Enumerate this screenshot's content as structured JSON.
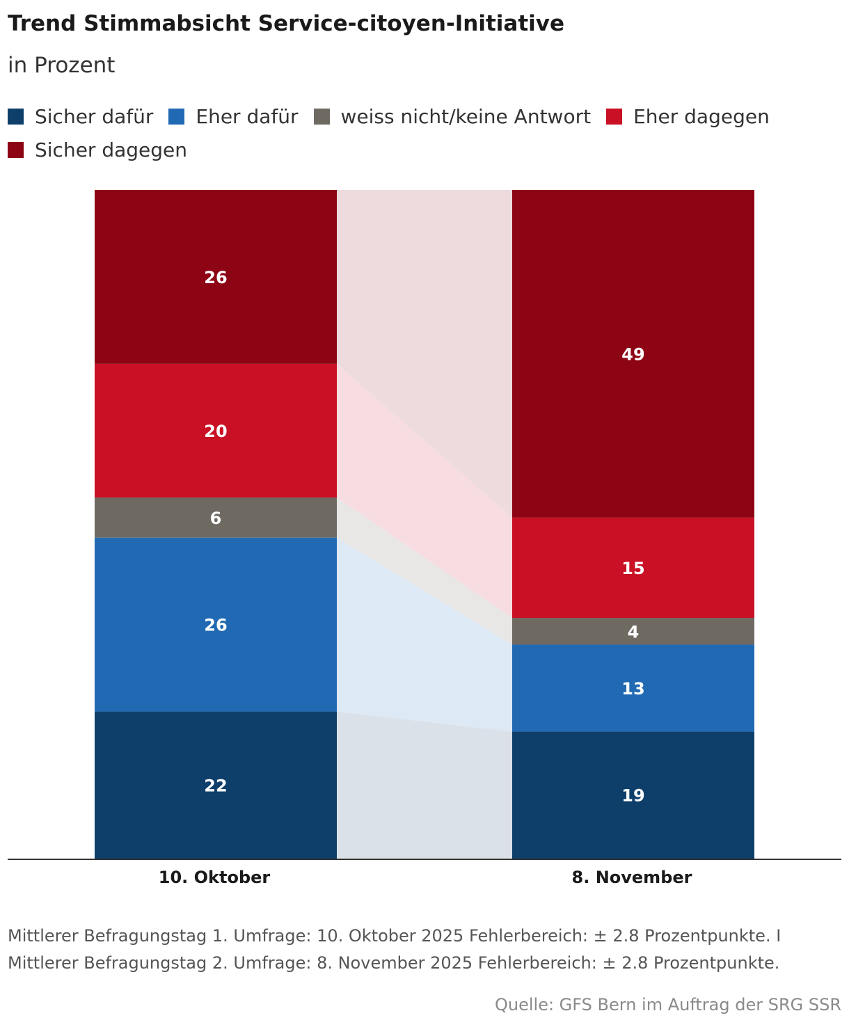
{
  "title": "Trend Stimmabsicht Service-citoyen-Initiative",
  "subtitle": "in Prozent",
  "footnote": "Mittlerer Befragungstag 1. Umfrage: 10. Oktober 2025 Fehlerbereich: ± 2.8 Prozentpunkte. I Mittlerer Befragungstag 2. Umfrage: 8. November 2025 Fehlerbereich: ± 2.8 Prozentpunkte.",
  "source": "Quelle: GFS Bern im Auftrag der SRG SSR",
  "colors": {
    "sicher_dafuer": "#0e3f6b",
    "eher_dafuer": "#216ab3",
    "weiss_nicht": "#6e6a62",
    "eher_dagegen": "#c91024",
    "sicher_dagegen": "#8d0515",
    "band_sicher_dafuer": "#dae1e9",
    "band_eher_dafuer": "#dde9f5",
    "band_weiss_nicht": "#e8e7e6",
    "band_eher_dagegen": "#f7dde1",
    "band_sicher_dagegen": "#eddbdd",
    "axis": "#333333",
    "label_text": "#ffffff"
  },
  "chart_data": {
    "type": "bar",
    "stacked": true,
    "categories": [
      "10. Oktober",
      "8. November"
    ],
    "series": [
      {
        "name": "Sicher dafür",
        "key": "sicher_dafuer",
        "values": [
          22,
          19
        ]
      },
      {
        "name": "Eher dafür",
        "key": "eher_dafuer",
        "values": [
          26,
          13
        ]
      },
      {
        "name": "weiss nicht/keine Antwort",
        "key": "weiss_nicht",
        "values": [
          6,
          4
        ]
      },
      {
        "name": "Eher dagegen",
        "key": "eher_dagegen",
        "values": [
          20,
          15
        ]
      },
      {
        "name": "Sicher dagegen",
        "key": "sicher_dagegen",
        "values": [
          26,
          49
        ]
      }
    ],
    "ylim": [
      0,
      100
    ],
    "legend_position": "top-left",
    "grid": false
  }
}
